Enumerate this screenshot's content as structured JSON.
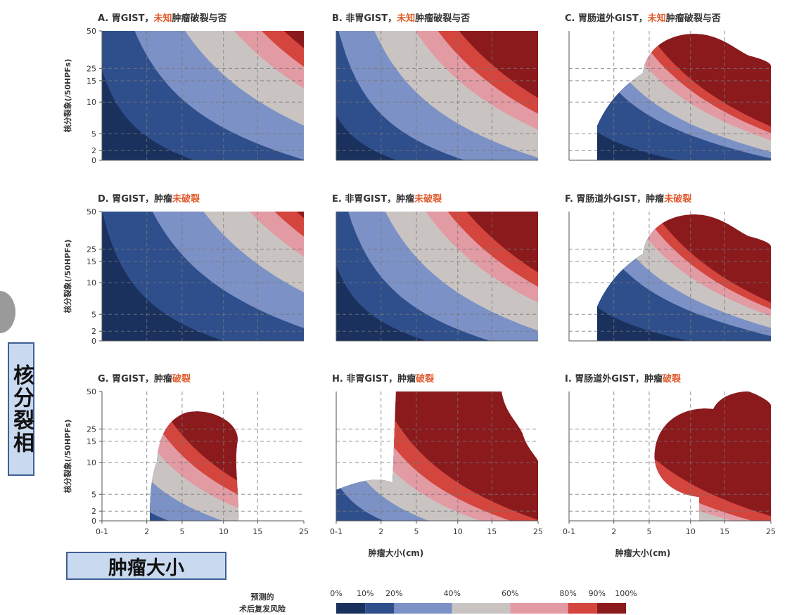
{
  "chart_data": {
    "type": "heatmap",
    "y_label": "核分裂象(/50HPFs)",
    "x_label": "肿瘤大小(cm)",
    "x_ticks": [
      "0-1",
      "2",
      "5",
      "10",
      "15",
      "25"
    ],
    "y_ticks": [
      "0",
      "2",
      "5",
      "10",
      "15",
      "25",
      "50"
    ],
    "panels": [
      {
        "id": "A",
        "title_parts": [
          "A. 胃GIST，",
          "未知",
          "肿瘤破裂与否"
        ],
        "thresholds": [
          [
            1.1,
            -0.02
          ],
          [
            2.9,
            -0.02
          ],
          [
            5.3,
            -0.03
          ],
          [
            7.8,
            -0.035
          ],
          [
            9.3,
            -0.04
          ],
          [
            10.6,
            -0.045
          ]
        ]
      },
      {
        "id": "B",
        "title_parts": [
          "B. 非胃GIST，",
          "未知",
          "肿瘤破裂与否"
        ],
        "thresholds": [
          [
            0.6,
            0
          ],
          [
            1.6,
            -0.02
          ],
          [
            3.2,
            -0.03
          ],
          [
            5.2,
            -0.04
          ],
          [
            6.4,
            -0.05
          ],
          [
            7.6,
            -0.06
          ]
        ]
      },
      {
        "id": "C",
        "title_parts": [
          "C. 胃肠道外GIST，",
          "未知",
          "肿瘤破裂与否"
        ],
        "thresholds": [
          [
            0.6,
            0.05
          ],
          [
            1.8,
            0.05
          ],
          [
            2.4,
            0.04
          ],
          [
            3.5,
            0.02
          ],
          [
            4.3,
            0
          ],
          [
            4.9,
            -0.01
          ]
        ]
      },
      {
        "id": "D",
        "title_parts": [
          "D. 胃GIST，肿瘤",
          "未破裂",
          ""
        ],
        "thresholds": [
          [
            1.5,
            -0.02
          ],
          [
            3.7,
            -0.02
          ],
          [
            6.2,
            -0.03
          ],
          [
            8.6,
            -0.035
          ],
          [
            10.0,
            -0.04
          ],
          [
            11.3,
            -0.045
          ]
        ]
      },
      {
        "id": "E",
        "title_parts": [
          "E. 非胃GIST，肿瘤",
          "未破裂",
          ""
        ],
        "thresholds": [
          [
            0.9,
            0
          ],
          [
            2.0,
            -0.02
          ],
          [
            3.7,
            -0.03
          ],
          [
            5.7,
            -0.04
          ],
          [
            6.9,
            -0.05
          ],
          [
            8.0,
            -0.06
          ]
        ]
      },
      {
        "id": "F",
        "title_parts": [
          "F. 胃肠道外GIST，肿瘤",
          "未破裂",
          ""
        ],
        "thresholds": [
          [
            0.7,
            0.05
          ],
          [
            2.0,
            0.05
          ],
          [
            2.7,
            0.04
          ],
          [
            3.8,
            0.02
          ],
          [
            4.6,
            0
          ],
          [
            5.2,
            -0.01
          ]
        ]
      },
      {
        "id": "G",
        "title_parts": [
          "G. 胃GIST，肿瘤",
          "破裂",
          ""
        ],
        "thresholds": [
          [
            0.2,
            -0.02
          ],
          [
            0.8,
            -0.02
          ],
          [
            1.6,
            -0.03
          ],
          [
            2.5,
            -0.035
          ],
          [
            3.2,
            -0.04
          ],
          [
            3.9,
            -0.045
          ]
        ]
      },
      {
        "id": "H",
        "title_parts": [
          "H. 非胃GIST，肿瘤",
          "破裂",
          ""
        ],
        "thresholds": [
          [
            0.1,
            0
          ],
          [
            0.6,
            -0.02
          ],
          [
            1.2,
            -0.03
          ],
          [
            2.1,
            -0.04
          ],
          [
            2.8,
            -0.05
          ],
          [
            3.6,
            -0.06
          ]
        ]
      },
      {
        "id": "I",
        "title_parts": [
          "I. 胃肠道外GIST，肿瘤",
          "破裂",
          ""
        ],
        "thresholds": [
          [
            0.1,
            0.05
          ],
          [
            0.4,
            0.05
          ],
          [
            0.8,
            0.04
          ],
          [
            1.6,
            0.02
          ],
          [
            2.2,
            0
          ],
          [
            3.0,
            -0.01
          ]
        ]
      }
    ],
    "legend": {
      "title_lines": [
        "预测的",
        "术后复发风险"
      ],
      "labels": [
        "0%",
        "10%",
        "20%",
        "40%",
        "60%",
        "80%",
        "90%",
        "100%"
      ],
      "colors": [
        "#1a315e",
        "#2e4f8c",
        "#7c91c5",
        "#c9c4c2",
        "#e29aa3",
        "#d3453d",
        "#8b1a1d"
      ]
    }
  },
  "side_label": "核分裂相",
  "bottom_label": "肿瘤大小",
  "colors": {
    "title_dark": "#333333",
    "title_accent": "#e05a2b",
    "box_fill": "#c9daf0",
    "box_border": "#3f5f95"
  }
}
